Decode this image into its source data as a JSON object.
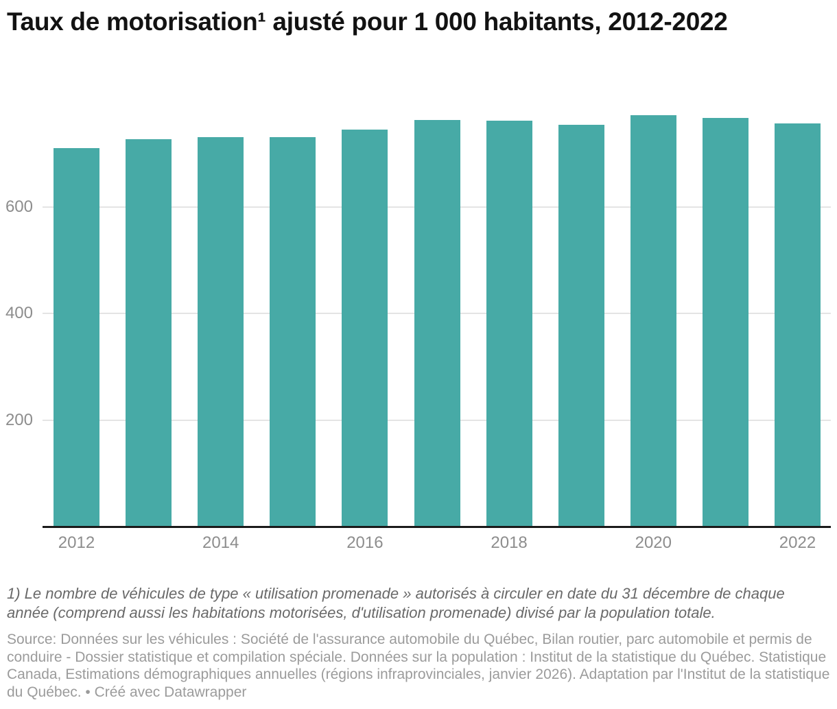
{
  "title": {
    "text": "Taux de motorisation¹ ajusté pour 1 000 habitants, 2012-2022"
  },
  "chart_data": {
    "type": "bar",
    "title": "Taux de motorisation¹ ajusté pour 1 000 habitants, 2012-2022",
    "categories": [
      "2012",
      "2013",
      "2014",
      "2015",
      "2016",
      "2017",
      "2018",
      "2019",
      "2020",
      "2021",
      "2022"
    ],
    "values": [
      711,
      728,
      731,
      731,
      745,
      763,
      762,
      754,
      773,
      767,
      757
    ],
    "xlabel": "",
    "ylabel": "",
    "ylim": [
      0,
      802
    ],
    "yticks": [
      200,
      400,
      600
    ],
    "x_tick_labels": [
      "2012",
      "2014",
      "2016",
      "2018",
      "2020",
      "2022"
    ],
    "grid": true,
    "legend": "none",
    "bar_color": "#47aaa6"
  },
  "notes": {
    "footnote": "1) Le nombre de véhicules de type « utilisation promenade » autorisés à circuler en date du 31 décembre de chaque année (comprend aussi les habitations motorisées, d'utilisation promenade) divisé par la population totale.",
    "source": "Source: Données sur les véhicules : Société de l'assurance automobile du Québec, Bilan routier, parc automobile et permis de conduire - Dossier statistique et compilation spéciale. Données sur la population : Institut de la statistique du Québec. Statistique Canada, Estimations démographiques annuelles (régions infraprovinciales, janvier 2026). Adaptation par l'Institut de la statistique du Québec. • Créé avec Datawrapper"
  },
  "colors": {
    "bar": "#47aaa6",
    "title_text": "#121212",
    "axis_label": "#8d8d8d",
    "gridline": "#e4e4e4",
    "baseline": "#1a1a1a",
    "footnote_text": "#696969",
    "source_text": "#9b9b9b",
    "background": "#ffffff"
  }
}
